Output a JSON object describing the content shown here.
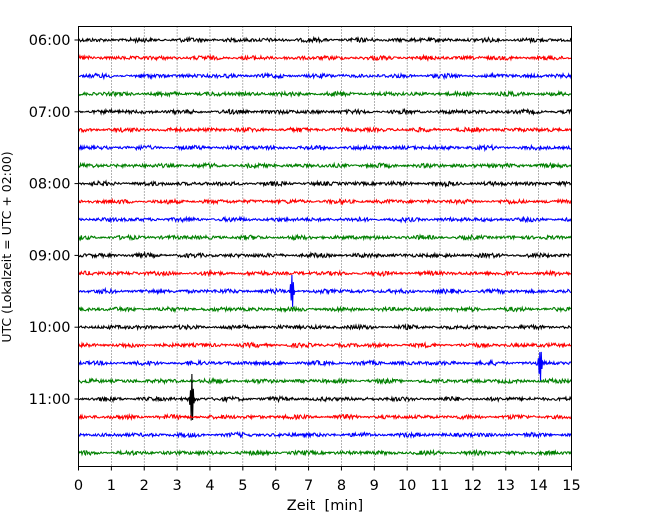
{
  "chart_data": {
    "type": "line",
    "title": "",
    "xlabel": "Zeit  [min]",
    "ylabel": "UTC (Lokalzeit = UTC + 02:00)",
    "xlim": [
      0,
      15
    ],
    "x_ticks": [
      "0",
      "1",
      "2",
      "3",
      "4",
      "5",
      "6",
      "7",
      "8",
      "9",
      "10",
      "11",
      "12",
      "13",
      "14",
      "15"
    ],
    "y_ticks": [
      "06:00",
      "07:00",
      "08:00",
      "09:00",
      "10:00",
      "11:00"
    ],
    "grid": "vertical dotted",
    "trace_colors": [
      "#000000",
      "#ff0000",
      "#0000ff",
      "#008000"
    ],
    "series": [
      {
        "start": "06:00",
        "color": "#000000"
      },
      {
        "start": "06:15",
        "color": "#ff0000"
      },
      {
        "start": "06:30",
        "color": "#0000ff"
      },
      {
        "start": "06:45",
        "color": "#008000"
      },
      {
        "start": "07:00",
        "color": "#000000"
      },
      {
        "start": "07:15",
        "color": "#ff0000"
      },
      {
        "start": "07:30",
        "color": "#0000ff"
      },
      {
        "start": "07:45",
        "color": "#008000"
      },
      {
        "start": "08:00",
        "color": "#000000"
      },
      {
        "start": "08:15",
        "color": "#ff0000"
      },
      {
        "start": "08:30",
        "color": "#0000ff"
      },
      {
        "start": "08:45",
        "color": "#008000"
      },
      {
        "start": "09:00",
        "color": "#000000"
      },
      {
        "start": "09:15",
        "color": "#ff0000"
      },
      {
        "start": "09:30",
        "color": "#0000ff",
        "events": [
          [
            6.5,
            1.2
          ]
        ]
      },
      {
        "start": "09:45",
        "color": "#008000"
      },
      {
        "start": "10:00",
        "color": "#000000"
      },
      {
        "start": "10:15",
        "color": "#ff0000"
      },
      {
        "start": "10:30",
        "color": "#0000ff",
        "events": [
          [
            14.05,
            1.3
          ]
        ]
      },
      {
        "start": "10:45",
        "color": "#008000"
      },
      {
        "start": "11:00",
        "color": "#000000",
        "events": [
          [
            3.45,
            1.9
          ]
        ]
      },
      {
        "start": "11:15",
        "color": "#ff0000"
      },
      {
        "start": "11:30",
        "color": "#0000ff"
      },
      {
        "start": "11:45",
        "color": "#008000"
      }
    ]
  }
}
